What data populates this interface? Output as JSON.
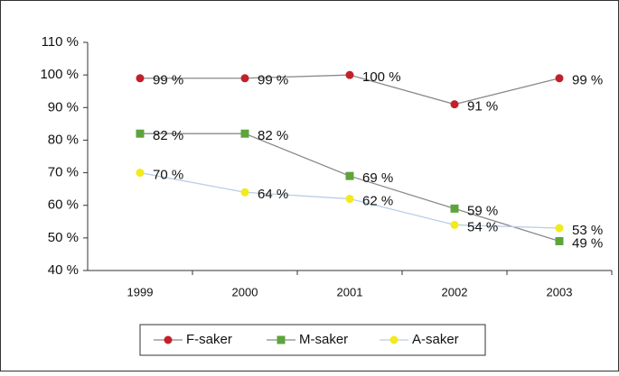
{
  "chart_data": {
    "type": "line",
    "categories": [
      "1999",
      "2000",
      "2001",
      "2002",
      "2003"
    ],
    "series": [
      {
        "name": "F-saker",
        "color": "#c3202a",
        "line_color": "#8a8a8a",
        "marker": "circle",
        "values": [
          99,
          99,
          100,
          91,
          99
        ],
        "value_labels": [
          "99 %",
          "99 %",
          "100 %",
          "91 %",
          "99 %"
        ]
      },
      {
        "name": "M-saker",
        "color": "#5ea33c",
        "line_color": "#8a8a8a",
        "marker": "square",
        "values": [
          82,
          82,
          69,
          59,
          49
        ],
        "value_labels": [
          "82 %",
          "82 %",
          "69 %",
          "59 %",
          "49 %"
        ]
      },
      {
        "name": "A-saker",
        "color": "#f2ea1c",
        "line_color": "#b9cde6",
        "marker": "circle",
        "values": [
          70,
          64,
          62,
          54,
          53
        ],
        "value_labels": [
          "70 %",
          "64 %",
          "62 %",
          "54 %",
          "53 %"
        ]
      }
    ],
    "ylim": [
      40,
      110
    ],
    "yticks": [
      {
        "value": 40,
        "label": "40 %"
      },
      {
        "value": 50,
        "label": "50 %"
      },
      {
        "value": 60,
        "label": "60 %"
      },
      {
        "value": 70,
        "label": "70 %"
      },
      {
        "value": 80,
        "label": "80 %"
      },
      {
        "value": 90,
        "label": "90 %"
      },
      {
        "value": 100,
        "label": "100 %"
      },
      {
        "value": 110,
        "label": "110 %"
      }
    ],
    "grid": false,
    "legend": "bottom"
  }
}
